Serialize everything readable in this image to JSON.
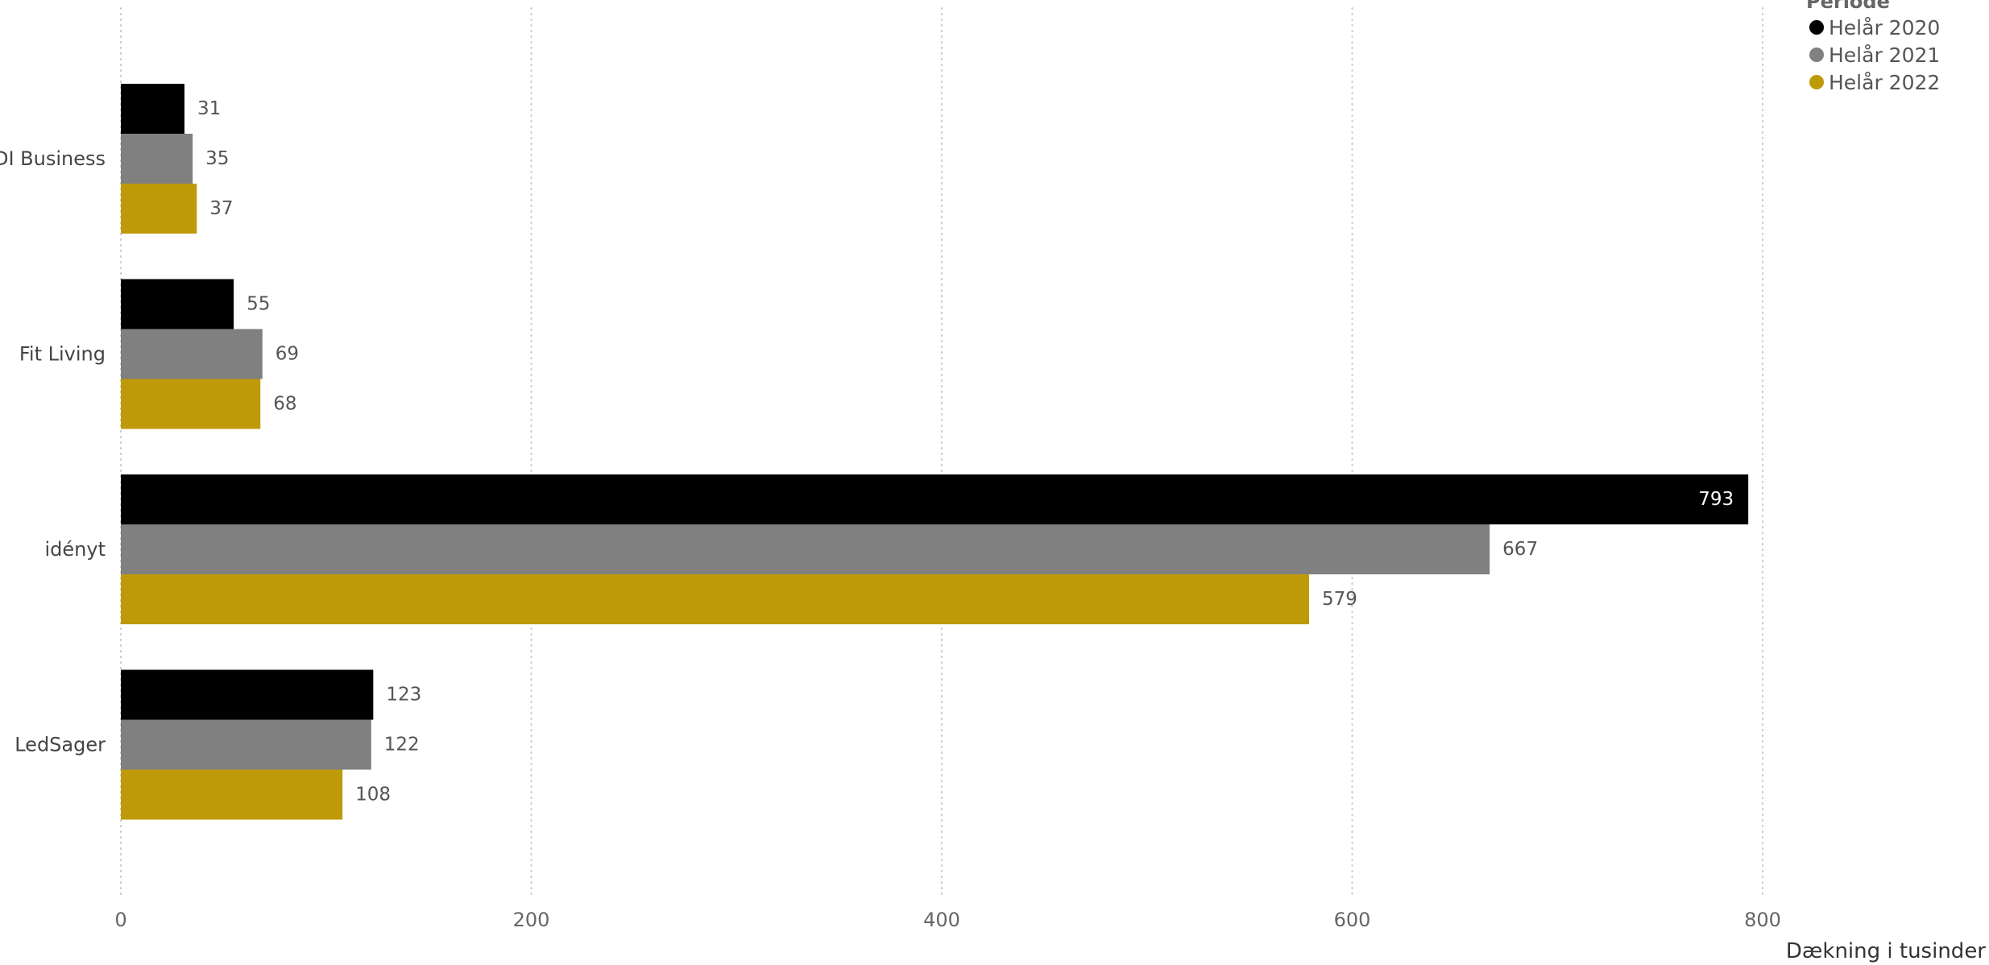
{
  "chart_data": {
    "type": "bar",
    "orientation": "horizontal",
    "categories": [
      "DI Business",
      "Fit Living",
      "idényt",
      "LedSager"
    ],
    "series": [
      {
        "name": "Helår 2020",
        "color": "#000000",
        "values": [
          31,
          55,
          793,
          123
        ]
      },
      {
        "name": "Helår 2021",
        "color": "#808080",
        "values": [
          35,
          69,
          667,
          122
        ]
      },
      {
        "name": "Helår 2022",
        "color": "#BF9A08",
        "values": [
          37,
          68,
          579,
          108
        ]
      }
    ],
    "xlabel": "Dækning i tusinder",
    "ylabel": "",
    "xlim": [
      0,
      800
    ],
    "xticks": [
      0,
      200,
      400,
      600,
      800
    ],
    "legend_title": "Periode",
    "legend_position": "top-right",
    "grid": "vertical dotted",
    "data_labels": true
  }
}
